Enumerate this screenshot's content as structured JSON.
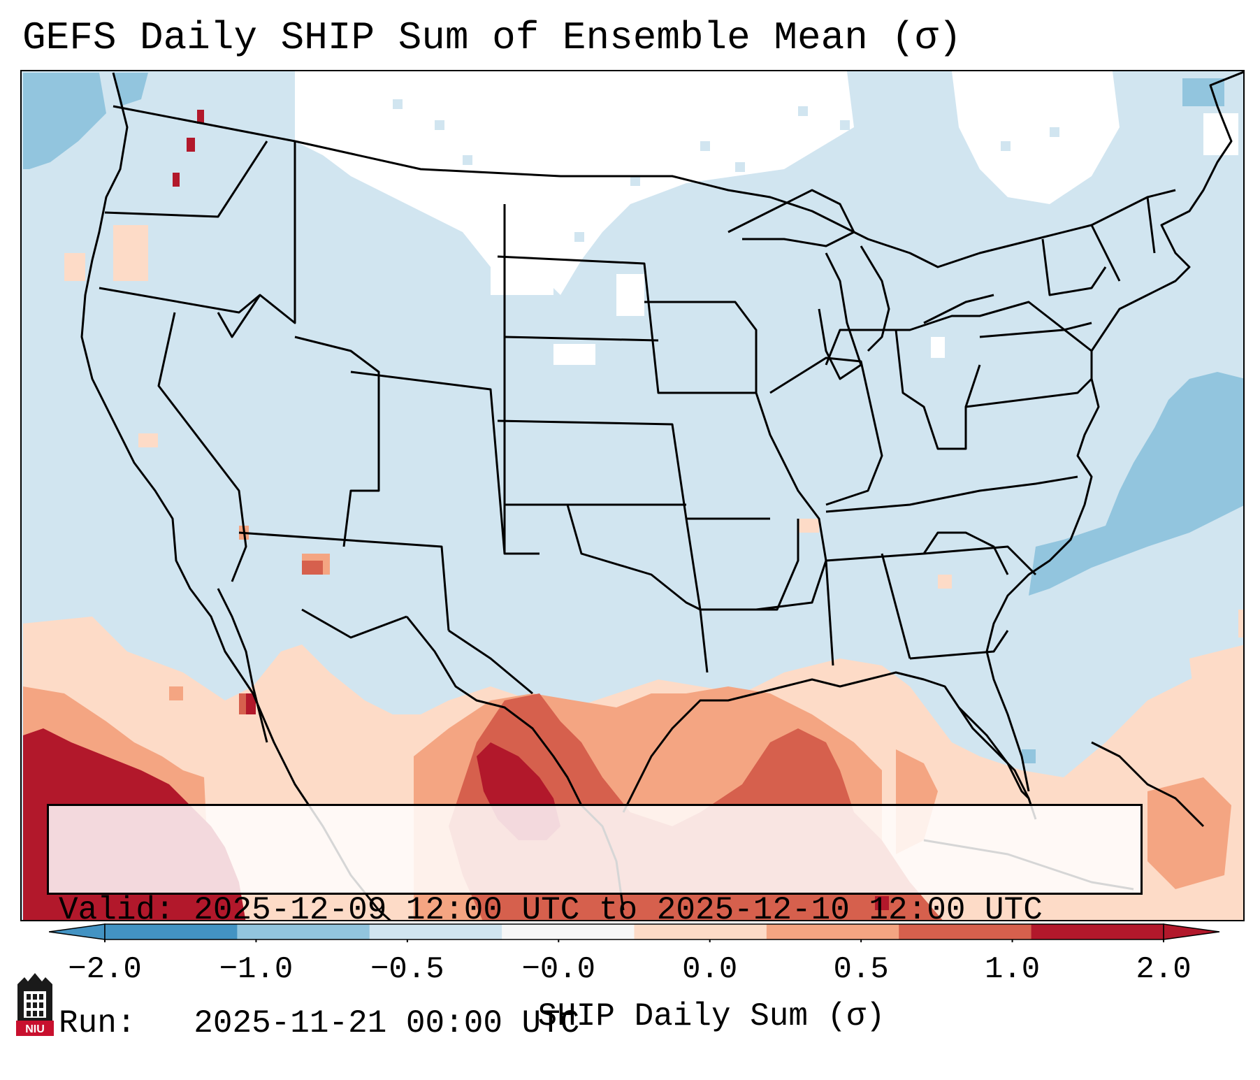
{
  "title": "GEFS Daily SHIP Sum of Ensemble Mean (σ)",
  "info": {
    "valid_label": "Valid:",
    "valid_value": "2025-12-09 12:00 UTC to 2025-12-10 12:00 UTC",
    "run_label": "Run:  ",
    "run_value": "2025-11-21 00:00 UTC"
  },
  "colorbar": {
    "label": "SHIP Daily Sum (σ)",
    "tick_labels": [
      "−2.0",
      "−1.0",
      "−0.5",
      "−0.0",
      "0.0",
      "0.5",
      "1.0",
      "2.0"
    ],
    "colors": [
      "#4393c3",
      "#92c5de",
      "#d1e5f0",
      "#f7f7f7",
      "#fddbc7",
      "#f4a582",
      "#d6604d",
      "#b2182b"
    ],
    "extend": "both"
  },
  "map": {
    "background_color": "#d1e5f0",
    "region": "Contiguous United States, northern Mexico and Gulf of Mexico"
  },
  "logo": {
    "text": "NIU",
    "icon": "niu-university-logo-icon"
  }
}
